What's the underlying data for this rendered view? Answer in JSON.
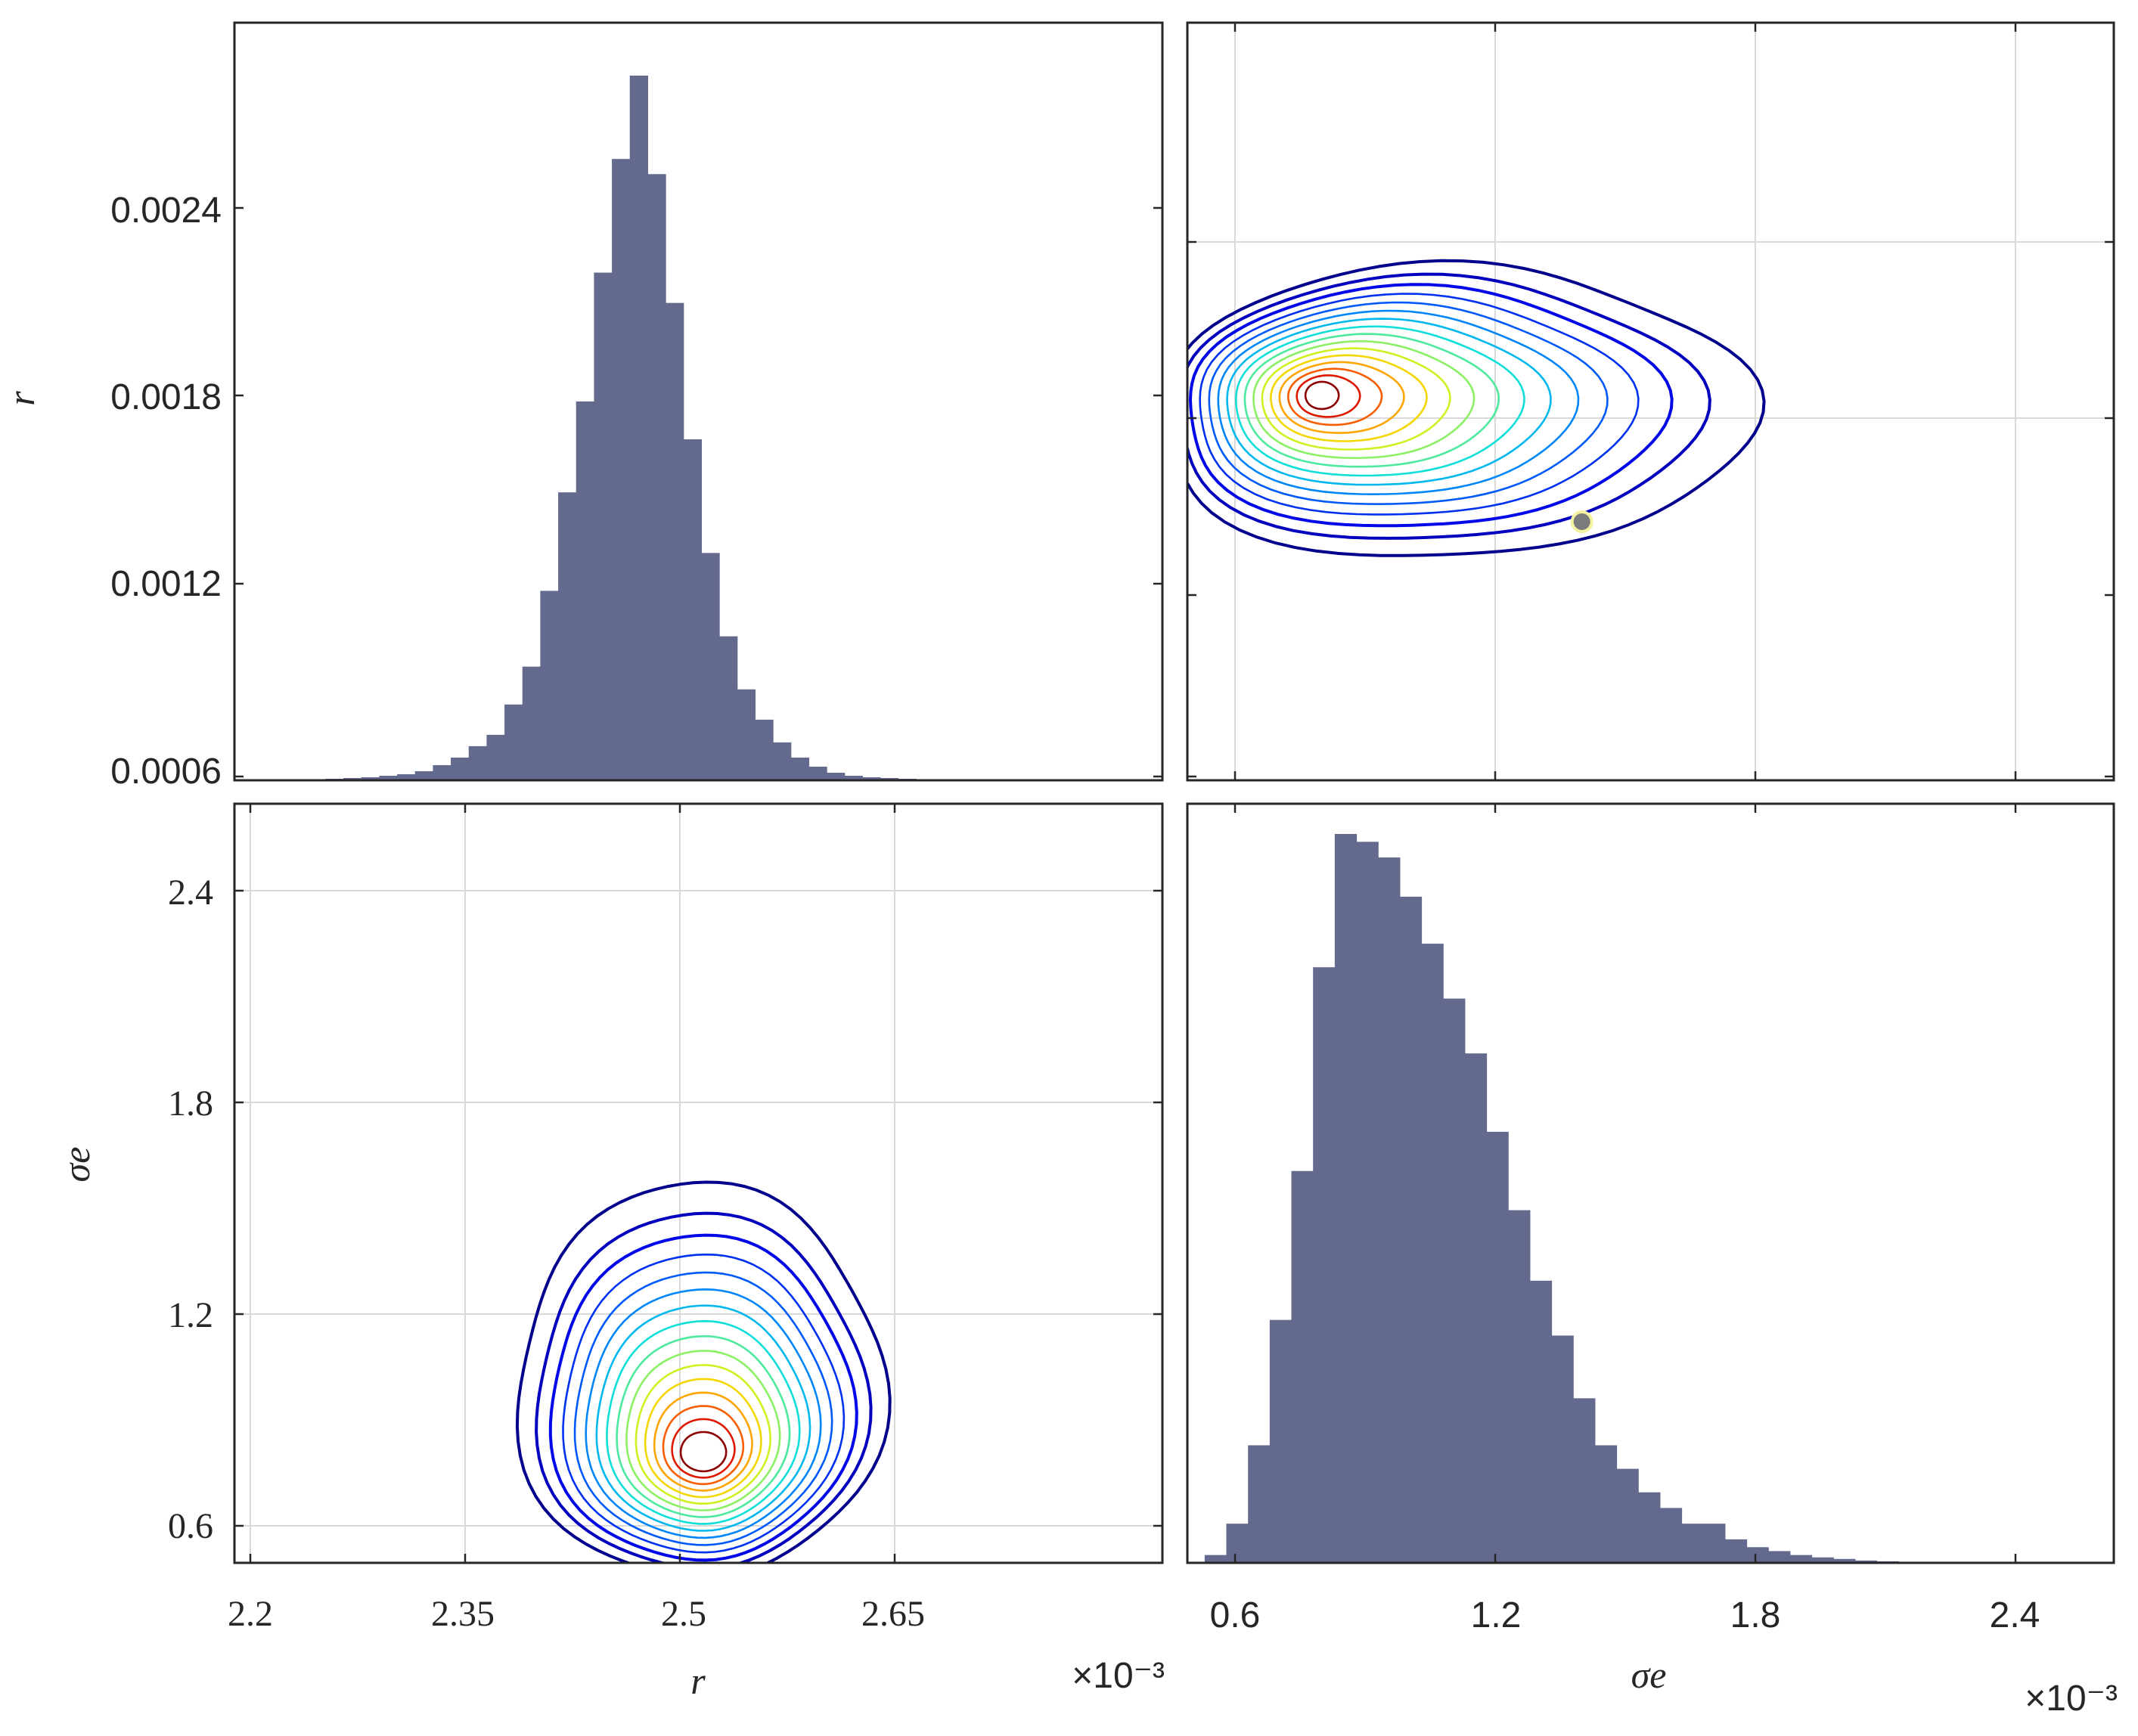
{
  "chart_data": [
    {
      "id": "hist_r",
      "type": "bar",
      "panel": "top-left",
      "ylabel": "r",
      "yticks": [
        "0.0006",
        "0.0012",
        "0.0018",
        "0.0024"
      ],
      "xlim": [
        2.19,
        2.82
      ],
      "ylim_ticks": [
        0.0006,
        0.0024
      ],
      "bins": {
        "start": 2.19,
        "width": 0.0125,
        "heights": [
          0.001,
          0.001,
          0.001,
          0.001,
          0.001,
          0.002,
          0.003,
          0.004,
          0.006,
          0.008,
          0.012,
          0.02,
          0.03,
          0.045,
          0.06,
          0.1,
          0.15,
          0.25,
          0.38,
          0.5,
          0.67,
          0.82,
          0.93,
          0.8,
          0.63,
          0.45,
          0.3,
          0.19,
          0.12,
          0.08,
          0.05,
          0.03,
          0.018,
          0.01,
          0.006,
          0.004,
          0.003,
          0.002,
          0.001,
          0.001
        ]
      }
    },
    {
      "id": "contour_top_right",
      "type": "contour",
      "panel": "top-right",
      "xlim": [
        0.5,
        2.6
      ],
      "center": [
        0.8,
        0.00178
      ],
      "marker": [
        1.4,
        0.00138
      ]
    },
    {
      "id": "contour_bottom_left",
      "type": "contour",
      "panel": "bottom-left",
      "ylabel": "σe",
      "xlabel": "r",
      "xticks": [
        "2.2",
        "2.35",
        "2.5",
        "2.65"
      ],
      "yticks": [
        "0.6",
        "1.2",
        "1.8",
        "2.4"
      ],
      "x_exponent": "×10⁻³",
      "xlim": [
        2.19,
        2.82
      ],
      "ylim": [
        0.5,
        2.6
      ],
      "center": [
        2.51,
        0.83
      ]
    },
    {
      "id": "hist_sigma_e",
      "type": "bar",
      "panel": "bottom-right",
      "xlabel": "σe",
      "xticks": [
        "0.6",
        "1.2",
        "1.8",
        "2.4"
      ],
      "x_exponent": "×10⁻³",
      "xlim": [
        0.5,
        2.6
      ],
      "bins": {
        "start": 0.53,
        "width": 0.05,
        "heights": [
          0.01,
          0.05,
          0.15,
          0.31,
          0.5,
          0.76,
          0.93,
          0.92,
          0.9,
          0.85,
          0.79,
          0.72,
          0.65,
          0.55,
          0.45,
          0.36,
          0.29,
          0.21,
          0.15,
          0.12,
          0.09,
          0.07,
          0.05,
          0.05,
          0.03,
          0.02,
          0.015,
          0.01,
          0.007,
          0.005,
          0.003,
          0.002,
          0.001,
          0.001
        ]
      }
    }
  ],
  "colors": {
    "bar": "#646a8e",
    "marker_fill": "#7b7b7b",
    "marker_edge": "#f5f2a0"
  }
}
